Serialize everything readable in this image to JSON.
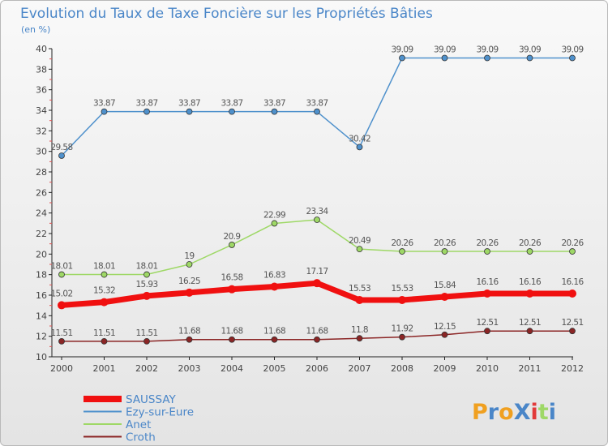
{
  "chart_data": {
    "type": "line",
    "title": "Evolution du Taux de Taxe Foncière sur les Propriétés Bâties",
    "subtitle": "(en %)",
    "xlabel": "",
    "ylabel": "",
    "ylim": [
      10,
      40
    ],
    "yticks": [
      "10",
      "12",
      "14",
      "16",
      "18",
      "20",
      "22",
      "24",
      "26",
      "28",
      "30",
      "32",
      "34",
      "36",
      "38",
      "40"
    ],
    "categories": [
      "2000",
      "2001",
      "2002",
      "2003",
      "2004",
      "2005",
      "2006",
      "2007",
      "2008",
      "2009",
      "2010",
      "2011",
      "2012"
    ],
    "legend_position": "bottom-left",
    "series": [
      {
        "name": "Ezy-sur-Eure",
        "color": "#4f91cc",
        "values": [
          29.58,
          33.87,
          33.87,
          33.87,
          33.87,
          33.87,
          33.87,
          30.42,
          39.09,
          39.09,
          39.09,
          39.09,
          39.09
        ],
        "labels": [
          "29.58",
          "33.87",
          "33.87",
          "33.87",
          "33.87",
          "33.87",
          "33.87",
          "30.42",
          "39.09",
          "39.09",
          "39.09",
          "39.09",
          "39.09"
        ]
      },
      {
        "name": "Anet",
        "color": "#9ed866",
        "values": [
          18.01,
          18.01,
          18.01,
          19,
          20.9,
          22.99,
          23.34,
          20.49,
          20.26,
          20.26,
          20.26,
          20.26,
          20.26
        ],
        "labels": [
          "18.01",
          "18.01",
          "18.01",
          "19",
          "20.9",
          "22.99",
          "23.34",
          "20.49",
          "20.26",
          "20.26",
          "20.26",
          "20.26",
          "20.26"
        ]
      },
      {
        "name": "SAUSSAY",
        "color": "#f01010",
        "values": [
          15.02,
          15.32,
          15.93,
          16.25,
          16.58,
          16.83,
          17.17,
          15.53,
          15.53,
          15.84,
          16.16,
          16.16,
          16.16
        ],
        "labels": [
          "15.02",
          "15.32",
          "15.93",
          "16.25",
          "16.58",
          "16.83",
          "17.17",
          "15.53",
          "15.53",
          "15.84",
          "16.16",
          "16.16",
          "16.16"
        ]
      },
      {
        "name": "Croth",
        "color": "#8b2525",
        "values": [
          11.51,
          11.51,
          11.51,
          11.68,
          11.68,
          11.68,
          11.68,
          11.8,
          11.92,
          12.15,
          12.51,
          12.51,
          12.51
        ],
        "labels": [
          "11.51",
          "11.51",
          "11.51",
          "11.68",
          "11.68",
          "11.68",
          "11.68",
          "11.8",
          "11.92",
          "12.15",
          "12.51",
          "12.51",
          "12.51"
        ]
      }
    ],
    "legend": [
      "SAUSSAY",
      "Ezy-sur-Eure",
      "Anet",
      "Croth"
    ]
  },
  "logo": {
    "text": "ProXiti"
  }
}
